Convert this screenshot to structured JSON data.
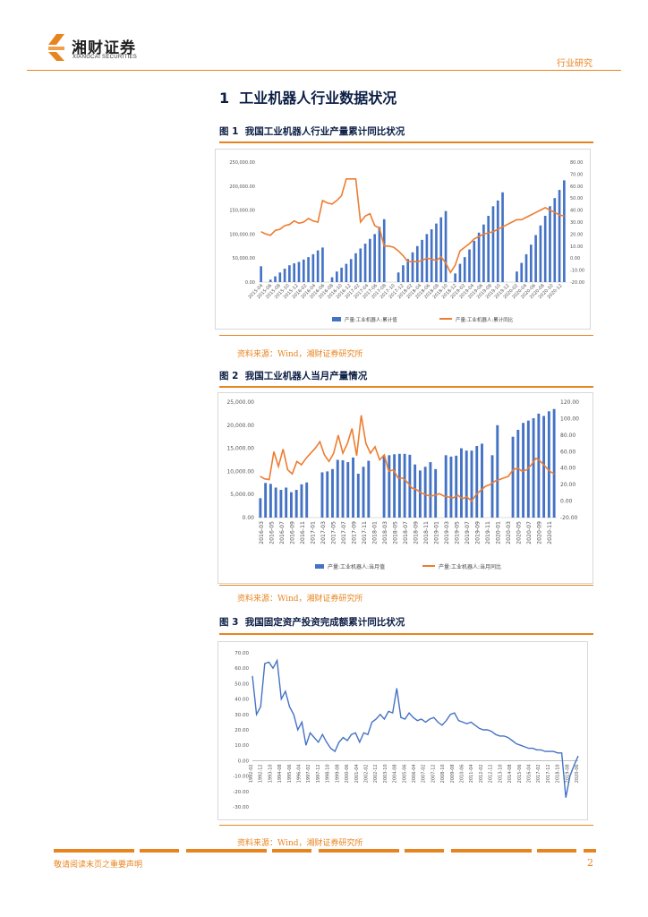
{
  "header": {
    "brand_cn": "湘财证券",
    "brand_en": "XIANGCAI SECURITIES",
    "category": "行业研究"
  },
  "section": {
    "number": "1",
    "title": "工业机器人行业数据状况"
  },
  "figures": [
    {
      "label": "图 1",
      "title": "我国工业机器人行业产量累计同比状况"
    },
    {
      "label": "图 2",
      "title": "我国工业机器人当月产量情况"
    },
    {
      "label": "图 3",
      "title": "我国固定资产投资完成额累计同比状况"
    }
  ],
  "source_text": "资料来源：Wind，湘财证券研究所",
  "footer": {
    "disclaimer": "敬请阅读末页之重要声明",
    "page": "2"
  },
  "colors": {
    "bar": "#4472c4",
    "line": "#ed7d31",
    "line3": "#4472c4",
    "accent": "#e8841f"
  },
  "chart_data": [
    {
      "type": "bar",
      "combo": "bar+line (secondary axis)",
      "legend": [
        "产量:工业机器人:累计值",
        "产量:工业机器人:累计同比"
      ],
      "legend_position": "bottom",
      "y_ticks_left": [
        "250,000.00",
        "200,000.00",
        "150,000.00",
        "100,000.00",
        "50,000.00",
        "0.00"
      ],
      "y_ticks_right": [
        "80.00",
        "70.00",
        "60.00",
        "50.00",
        "40.00",
        "30.00",
        "20.00",
        "10.00",
        "0.00",
        "-10.00",
        "-20.00"
      ],
      "ylim_left": [
        0,
        250000
      ],
      "ylim_right": [
        -20,
        80
      ],
      "x_ticks": [
        "2015-04",
        "2015-06",
        "2015-08",
        "2015-10",
        "2015-12",
        "2016-02",
        "2016-04",
        "2016-06",
        "2016-08",
        "2016-10",
        "2016-12",
        "2017-02",
        "2017-04",
        "2017-06",
        "2017-08",
        "2017-10",
        "2017-12",
        "2018-02",
        "2018-04",
        "2018-06",
        "2018-08",
        "2018-10",
        "2018-12",
        "2019-02",
        "2019-04",
        "2019-06",
        "2019-08",
        "2019-10",
        "2019-12",
        "2020-02",
        "2020-04",
        "2020-06",
        "2020-08",
        "2020-10",
        "2020-12"
      ],
      "bar_values": [
        33000,
        0,
        5000,
        12000,
        20000,
        28000,
        35000,
        39000,
        42000,
        47000,
        52000,
        58000,
        66000,
        72000,
        0,
        10000,
        22000,
        30000,
        38000,
        48000,
        60000,
        70000,
        80000,
        90000,
        100000,
        115000,
        131000,
        0,
        0,
        20000,
        35000,
        48000,
        62000,
        75000,
        88000,
        100000,
        110000,
        122000,
        135000,
        148000,
        0,
        18000,
        38000,
        52000,
        68000,
        86000,
        103000,
        120000,
        138000,
        158000,
        170000,
        187000,
        0,
        0,
        22000,
        40000,
        58000,
        78000,
        98000,
        118000,
        138000,
        158000,
        175000,
        192000,
        212000
      ],
      "line_values": [
        22,
        20,
        19,
        23,
        24,
        27,
        28,
        31,
        29,
        30,
        33,
        31,
        30,
        48,
        46,
        45,
        48,
        52,
        66,
        66,
        66,
        30,
        35,
        37,
        27,
        25,
        10,
        10,
        9,
        6,
        2,
        -3,
        -3,
        -3,
        -2,
        0,
        -1,
        -2,
        1,
        -4,
        -12,
        -6,
        6,
        9,
        12,
        16,
        18,
        20,
        21,
        22,
        24,
        26,
        28,
        30,
        32,
        32,
        34,
        36,
        38,
        40,
        42,
        40,
        38,
        36,
        35
      ]
    },
    {
      "type": "bar",
      "combo": "bar+line (secondary axis)",
      "legend": [
        "产量:工业机器人:当月值",
        "产量:工业机器人:当月同比"
      ],
      "legend_position": "bottom",
      "y_ticks_left": [
        "25,000.00",
        "20,000.00",
        "15,000.00",
        "10,000.00",
        "5,000.00",
        "0.00"
      ],
      "y_ticks_right": [
        "120.00",
        "100.00",
        "80.00",
        "60.00",
        "40.00",
        "20.00",
        "0.00",
        "-20.00"
      ],
      "ylim_left": [
        0,
        25000
      ],
      "ylim_right": [
        -20,
        120
      ],
      "x_ticks": [
        "2016-03",
        "2016-05",
        "2016-07",
        "2016-09",
        "2016-11",
        "2017-01",
        "2017-03",
        "2017-05",
        "2017-07",
        "2017-09",
        "2017-11",
        "2018-01",
        "2018-03",
        "2018-05",
        "2018-07",
        "2018-09",
        "2018-11",
        "2019-01",
        "2019-03",
        "2019-05",
        "2019-07",
        "2019-09",
        "2019-11",
        "2020-01",
        "2020-03",
        "2020-05",
        "2020-07",
        "2020-09",
        "2020-11"
      ],
      "bar_values": [
        4200,
        7500,
        7300,
        6500,
        6000,
        6500,
        5500,
        6000,
        7200,
        7600,
        0,
        0,
        9800,
        10000,
        10500,
        12500,
        12400,
        12000,
        13000,
        9500,
        11000,
        12300,
        0,
        0,
        13500,
        13500,
        13700,
        13800,
        13800,
        13600,
        11500,
        10200,
        11000,
        12000,
        10500,
        0,
        13500,
        13200,
        13400,
        15000,
        14500,
        14500,
        15500,
        16000,
        0,
        13500,
        20000,
        0,
        0,
        17500,
        19000,
        20500,
        21000,
        21500,
        22500,
        22000,
        23000,
        23500
      ],
      "line_values": [
        30,
        27,
        26,
        60,
        42,
        63,
        38,
        33,
        48,
        44,
        52,
        58,
        64,
        72,
        56,
        48,
        58,
        80,
        58,
        70,
        88,
        55,
        104,
        70,
        58,
        66,
        50,
        56,
        36,
        38,
        28,
        28,
        23,
        16,
        14,
        10,
        8,
        6,
        7,
        9,
        6,
        5,
        4,
        7,
        3,
        5,
        0,
        8,
        13,
        18,
        20,
        24,
        26,
        28,
        30,
        38,
        40,
        36,
        38,
        44,
        52,
        48,
        42,
        36,
        33
      ]
    },
    {
      "type": "line",
      "y_ticks": [
        "70.00",
        "60.00",
        "50.00",
        "40.00",
        "30.00",
        "20.00",
        "10.00",
        "0.00",
        "-10.00",
        "-20.00",
        "-30.00"
      ],
      "ylim": [
        -30,
        70
      ],
      "x_ticks": [
        "1992-02",
        "1992-12",
        "1993-10",
        "1994-08",
        "1995-06",
        "1996-04",
        "1997-02",
        "1997-12",
        "1998-10",
        "1999-08",
        "2000-06",
        "2001-04",
        "2002-02",
        "2002-12",
        "2003-10",
        "2004-08",
        "2005-06",
        "2006-04",
        "2007-02",
        "2007-12",
        "2008-10",
        "2009-08",
        "2010-06",
        "2011-04",
        "2012-02",
        "2012-12",
        "2013-10",
        "2014-08",
        "2015-06",
        "2016-04",
        "2017-02",
        "2017-12",
        "2018-10",
        "2019-08",
        "2020-06"
      ],
      "values": [
        55,
        30,
        35,
        63,
        64,
        60,
        65,
        40,
        45,
        35,
        30,
        20,
        25,
        10,
        18,
        15,
        12,
        17,
        12,
        8,
        6,
        12,
        15,
        13,
        17,
        18,
        12,
        18,
        17,
        25,
        27,
        30,
        27,
        32,
        31,
        47,
        28,
        27,
        31,
        28,
        26,
        27,
        25,
        27,
        28,
        25,
        23,
        26,
        30,
        31,
        26,
        25,
        24,
        25,
        23,
        21,
        20,
        20,
        19,
        17,
        16,
        16,
        15,
        13,
        11,
        10,
        9,
        8,
        8,
        7,
        7,
        6,
        6,
        6,
        5,
        5,
        -24,
        -10,
        -3,
        3
      ]
    }
  ]
}
